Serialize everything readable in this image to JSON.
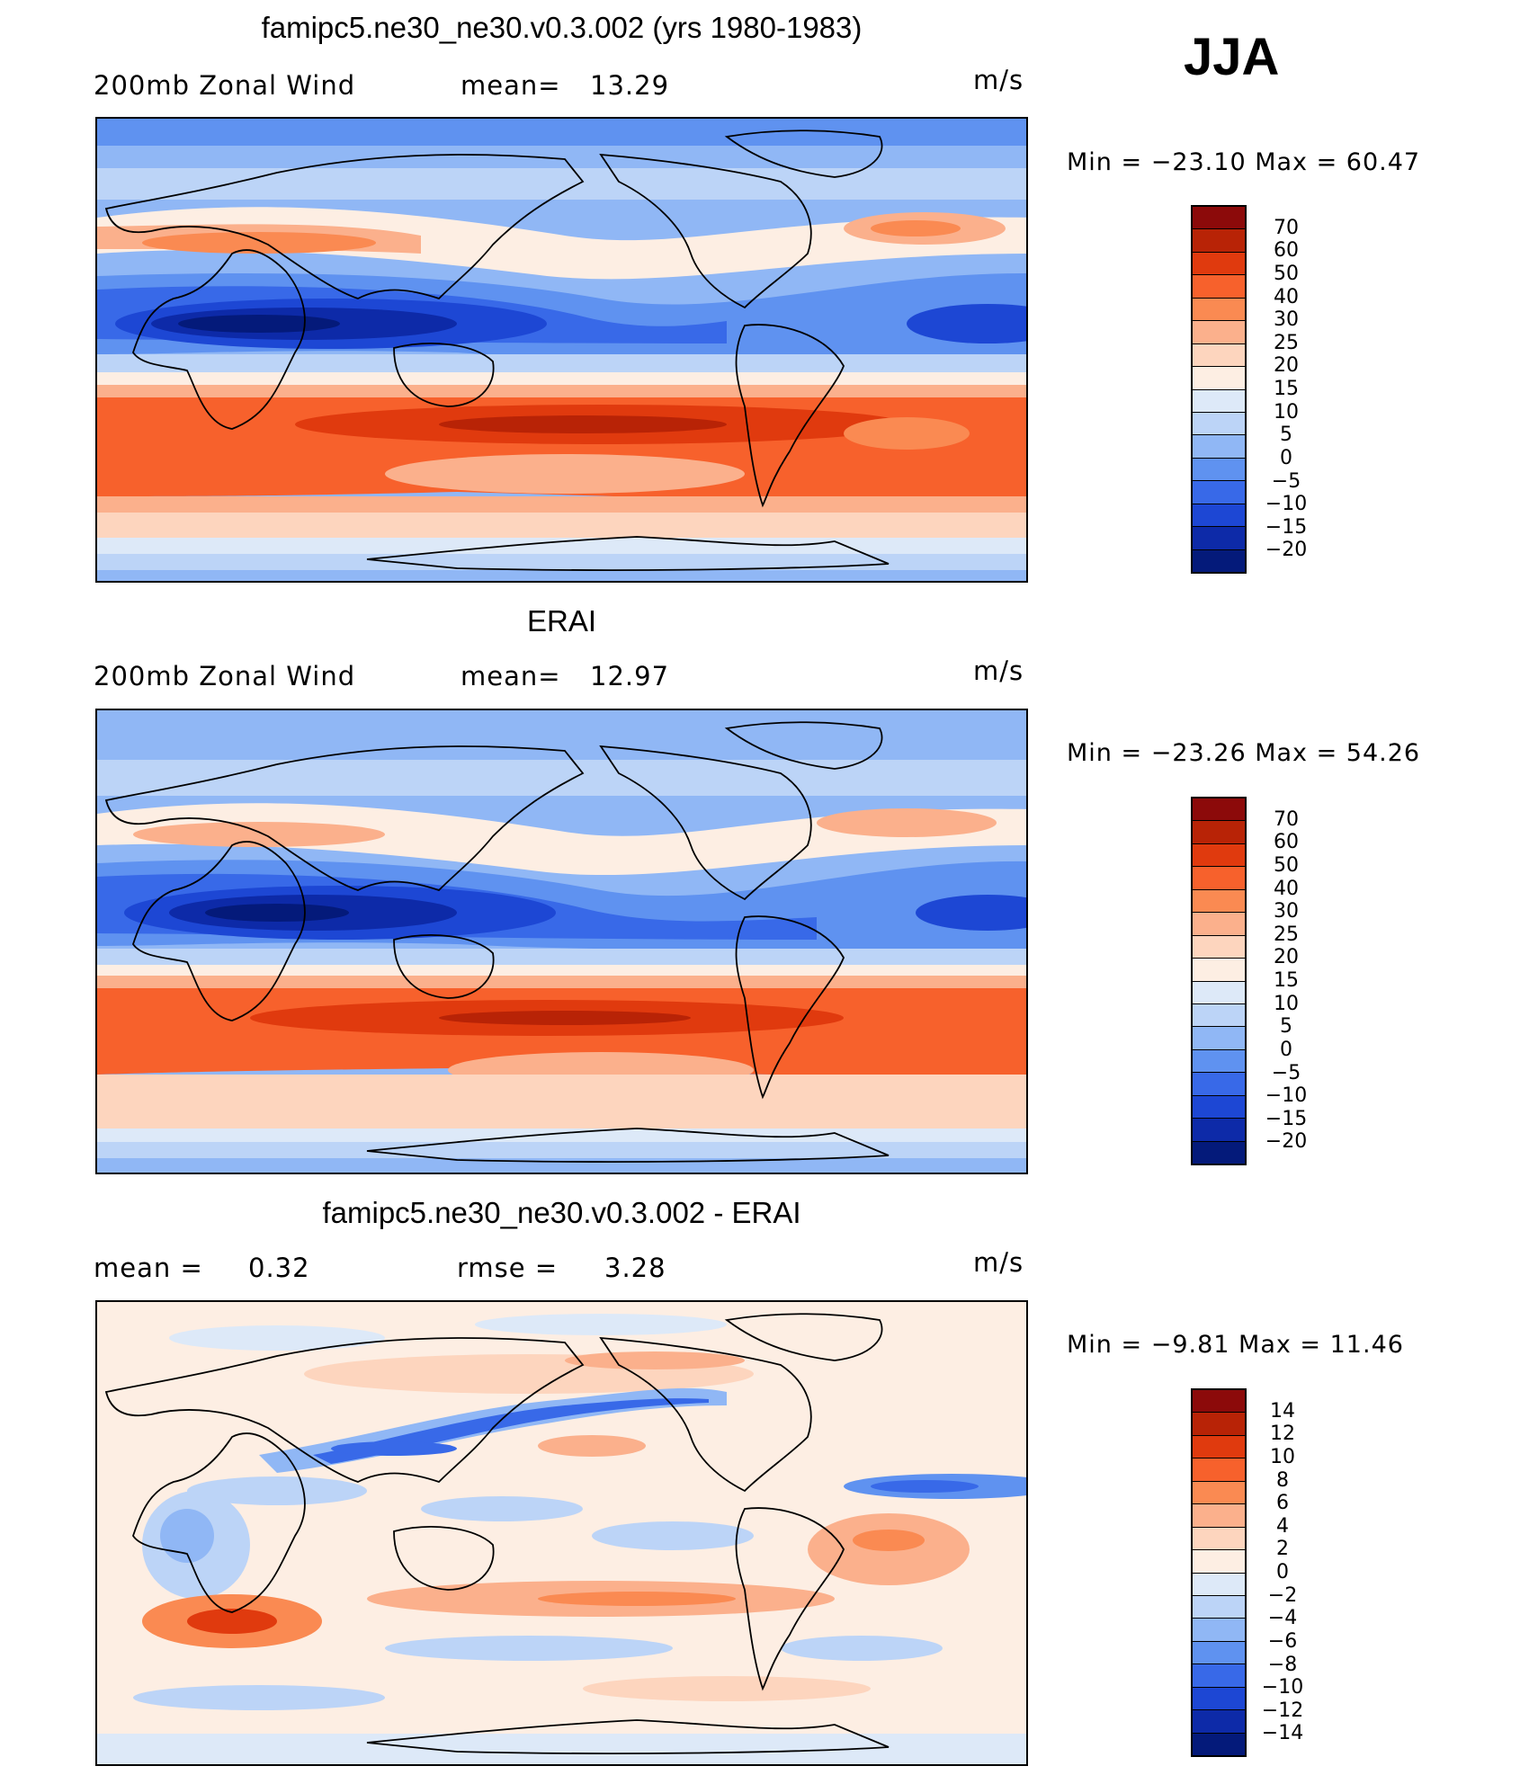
{
  "panels": [
    {
      "title": "famipc5.ne30_ne30.v0.3.002 (yrs 1980-1983)",
      "left_label": "200mb Zonal Wind",
      "mid_label": "mean=",
      "mid_value": "13.29",
      "units": "m/s",
      "minmax_text": "Min = −23.10 Max =  60.47",
      "colorbar_labels": [
        "70",
        "60",
        "50",
        "40",
        "30",
        "25",
        "20",
        "15",
        "10",
        "5",
        "0",
        "−5",
        "−10",
        "−15",
        "−20"
      ]
    },
    {
      "title": "ERAI",
      "left_label": "200mb Zonal Wind",
      "mid_label": "mean=",
      "mid_value": "12.97",
      "units": "m/s",
      "minmax_text": "Min = −23.26 Max =  54.26",
      "colorbar_labels": [
        "70",
        "60",
        "50",
        "40",
        "30",
        "25",
        "20",
        "15",
        "10",
        "5",
        "0",
        "−5",
        "−10",
        "−15",
        "−20"
      ]
    },
    {
      "title": "famipc5.ne30_ne30.v0.3.002 - ERAI",
      "left_label": "mean =",
      "left_value": "0.32",
      "mid_label": "rmse =",
      "mid_value": "3.28",
      "units": "m/s",
      "minmax_text": "Min =  −9.81 Max =  11.46",
      "colorbar_labels": [
        "14",
        "12",
        "10",
        "8",
        "6",
        "4",
        "2",
        "0",
        "−2",
        "−4",
        "−6",
        "−8",
        "−10",
        "−12",
        "−14"
      ]
    }
  ],
  "season": "JJA",
  "colors": {
    "field_scale": [
      "#8c0a0a",
      "#b82306",
      "#e03a0e",
      "#f7612c",
      "#fa8a52",
      "#fbb08c",
      "#fdd5be",
      "#fdeee3",
      "#dde9f8",
      "#bcd4f7",
      "#90b7f5",
      "#5f92f0",
      "#3869e8",
      "#1d47d4",
      "#0d2aa8",
      "#041a7a"
    ],
    "diff_scale": [
      "#8c0a0a",
      "#b82306",
      "#e03a0e",
      "#f7612c",
      "#fa8a52",
      "#fbb08c",
      "#fdd5be",
      "#fdeee3",
      "#dde9f8",
      "#bcd4f7",
      "#90b7f5",
      "#5f92f0",
      "#3869e8",
      "#1d47d4",
      "#0d2aa8",
      "#041a7a"
    ]
  },
  "map": {
    "projection": "cylindrical equidistant",
    "center_longitude": 180
  }
}
